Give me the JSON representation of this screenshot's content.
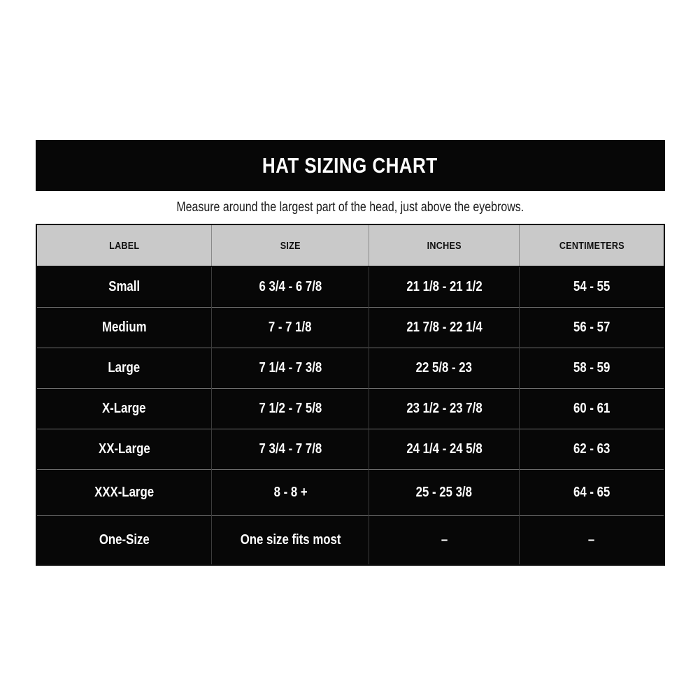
{
  "banner": {
    "title": "HAT SIZING CHART",
    "background_color": "#070707",
    "text_color": "#ffffff"
  },
  "subtitle": "Measure around the largest part of the head, just above the eyebrows.",
  "table": {
    "columns": [
      "LABEL",
      "SIZE",
      "INCHES",
      "CENTIMETERS"
    ],
    "header_background_color": "#c9c9c9",
    "header_text_color": "#111111",
    "body_background_color": "#070707",
    "body_text_color": "#ffffff",
    "rows": [
      [
        "Small",
        "6 3/4 - 6 7/8",
        "21 1/8 - 21 1/2",
        "54 - 55"
      ],
      [
        "Medium",
        "7 - 7 1/8",
        "21 7/8 - 22 1/4",
        "56 - 57"
      ],
      [
        "Large",
        "7 1/4 - 7 3/8",
        "22 5/8 - 23",
        "58 - 59"
      ],
      [
        "X-Large",
        "7 1/2 - 7 5/8",
        "23 1/2 - 23 7/8",
        "60 - 61"
      ],
      [
        "XX-Large",
        "7 3/4 - 7 7/8",
        "24 1/4 - 24 5/8",
        "62 - 63"
      ],
      [
        "XXX-Large",
        "8 - 8 +",
        "25 - 25 3/8",
        "64 - 65"
      ],
      [
        "One-Size",
        "One size fits most",
        "–",
        "–"
      ]
    ]
  },
  "chart_data": {
    "type": "table",
    "title": "HAT SIZING CHART",
    "subtitle": "Measure around the largest part of the head, just above the eyebrows.",
    "columns": [
      "LABEL",
      "SIZE",
      "INCHES",
      "CENTIMETERS"
    ],
    "rows": [
      [
        "Small",
        "6 3/4 - 6 7/8",
        "21 1/8 - 21 1/2",
        "54 - 55"
      ],
      [
        "Medium",
        "7 - 7 1/8",
        "21 7/8 - 22 1/4",
        "56 - 57"
      ],
      [
        "Large",
        "7 1/4 - 7 3/8",
        "22 5/8 - 23",
        "58 - 59"
      ],
      [
        "X-Large",
        "7 1/2 - 7 5/8",
        "23 1/2 - 23 7/8",
        "60 - 61"
      ],
      [
        "XX-Large",
        "7 3/4 - 7 7/8",
        "24 1/4 - 24 5/8",
        "62 - 63"
      ],
      [
        "XXX-Large",
        "8 - 8 +",
        "25 - 25 3/8",
        "64 - 65"
      ],
      [
        "One-Size",
        "One size fits most",
        "–",
        "–"
      ]
    ]
  }
}
